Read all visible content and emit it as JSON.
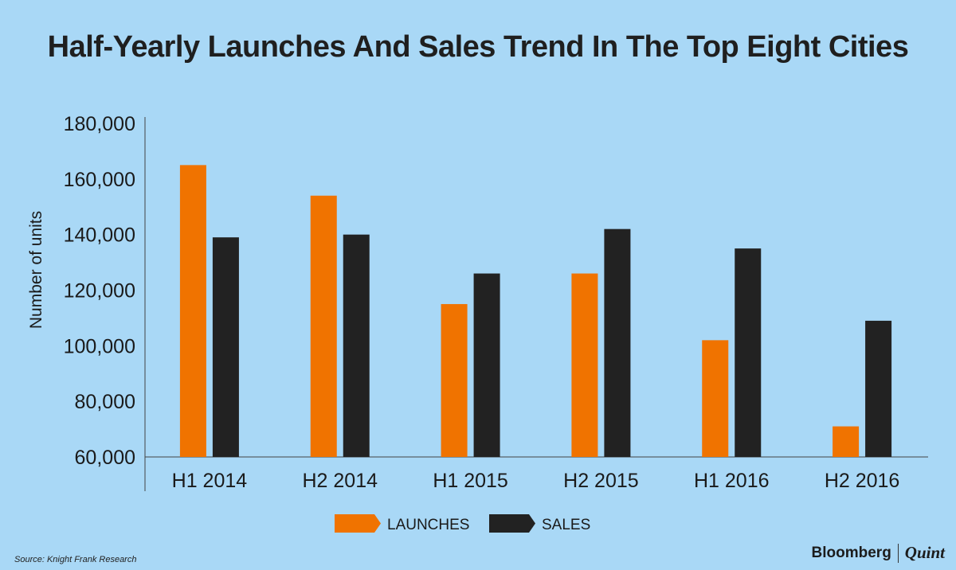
{
  "chart_data": {
    "type": "bar",
    "title": "Half-Yearly Launches And Sales Trend In The Top Eight Cities",
    "xlabel": "",
    "ylabel": "Number of units",
    "ylim": [
      60000,
      180000
    ],
    "yticks": [
      60000,
      80000,
      100000,
      120000,
      140000,
      160000,
      180000
    ],
    "ytick_labels": [
      "60,000",
      "80,000",
      "100,000",
      "120,000",
      "140,000",
      "160,000",
      "180,000"
    ],
    "categories": [
      "H1 2014",
      "H2 2014",
      "H1 2015",
      "H2 2015",
      "H1 2016",
      "H2 2016"
    ],
    "series": [
      {
        "name": "LAUNCHES",
        "color": "#f07300",
        "values": [
          165000,
          154000,
          115000,
          126000,
          102000,
          71000
        ]
      },
      {
        "name": "SALES",
        "color": "#222222",
        "values": [
          139000,
          140000,
          126000,
          142000,
          135000,
          109000
        ]
      }
    ],
    "legend_position": "bottom-center",
    "grid": false
  },
  "footer": {
    "source": "Source: Knight Frank Research",
    "brand_left": "Bloomberg",
    "brand_right": "Quint"
  },
  "colors": {
    "background": "#a9d8f6",
    "axis": "#444444"
  }
}
